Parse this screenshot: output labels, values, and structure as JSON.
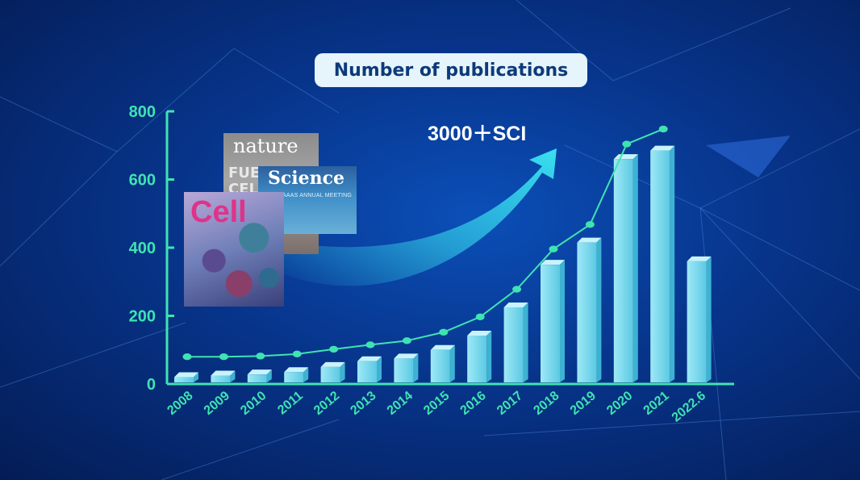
{
  "header": {
    "title": "Number of publications"
  },
  "callout": {
    "text": "3000＋SCI"
  },
  "covers": {
    "nature": {
      "masthead": "nature",
      "subtitle": "FUEL\nCELL"
    },
    "science": {
      "masthead": "Science",
      "subtitle": "AAAS ANNUAL MEETING"
    },
    "cell": {
      "masthead": "Cell"
    }
  },
  "colors": {
    "axis": "#3fe3b2",
    "bar": "#6fd6ec",
    "line": "#3fe3b2",
    "arrow": "#39e0f0"
  },
  "chart_data": {
    "type": "bar",
    "categories": [
      "2008",
      "2009",
      "2010",
      "2011",
      "2012",
      "2013",
      "2014",
      "2015",
      "2016",
      "2017",
      "2018",
      "2019",
      "2020",
      "2021",
      "2022.6"
    ],
    "values": [
      20,
      25,
      28,
      35,
      50,
      67,
      75,
      100,
      142,
      225,
      350,
      415,
      660,
      685,
      360
    ],
    "line_values": [
      80,
      80,
      82,
      88,
      102,
      115,
      127,
      152,
      197,
      278,
      396,
      468,
      704,
      748
    ],
    "ylim": [
      0,
      800
    ],
    "y_ticks": [
      "0",
      "200",
      "400",
      "600",
      "800"
    ],
    "grid": false
  }
}
